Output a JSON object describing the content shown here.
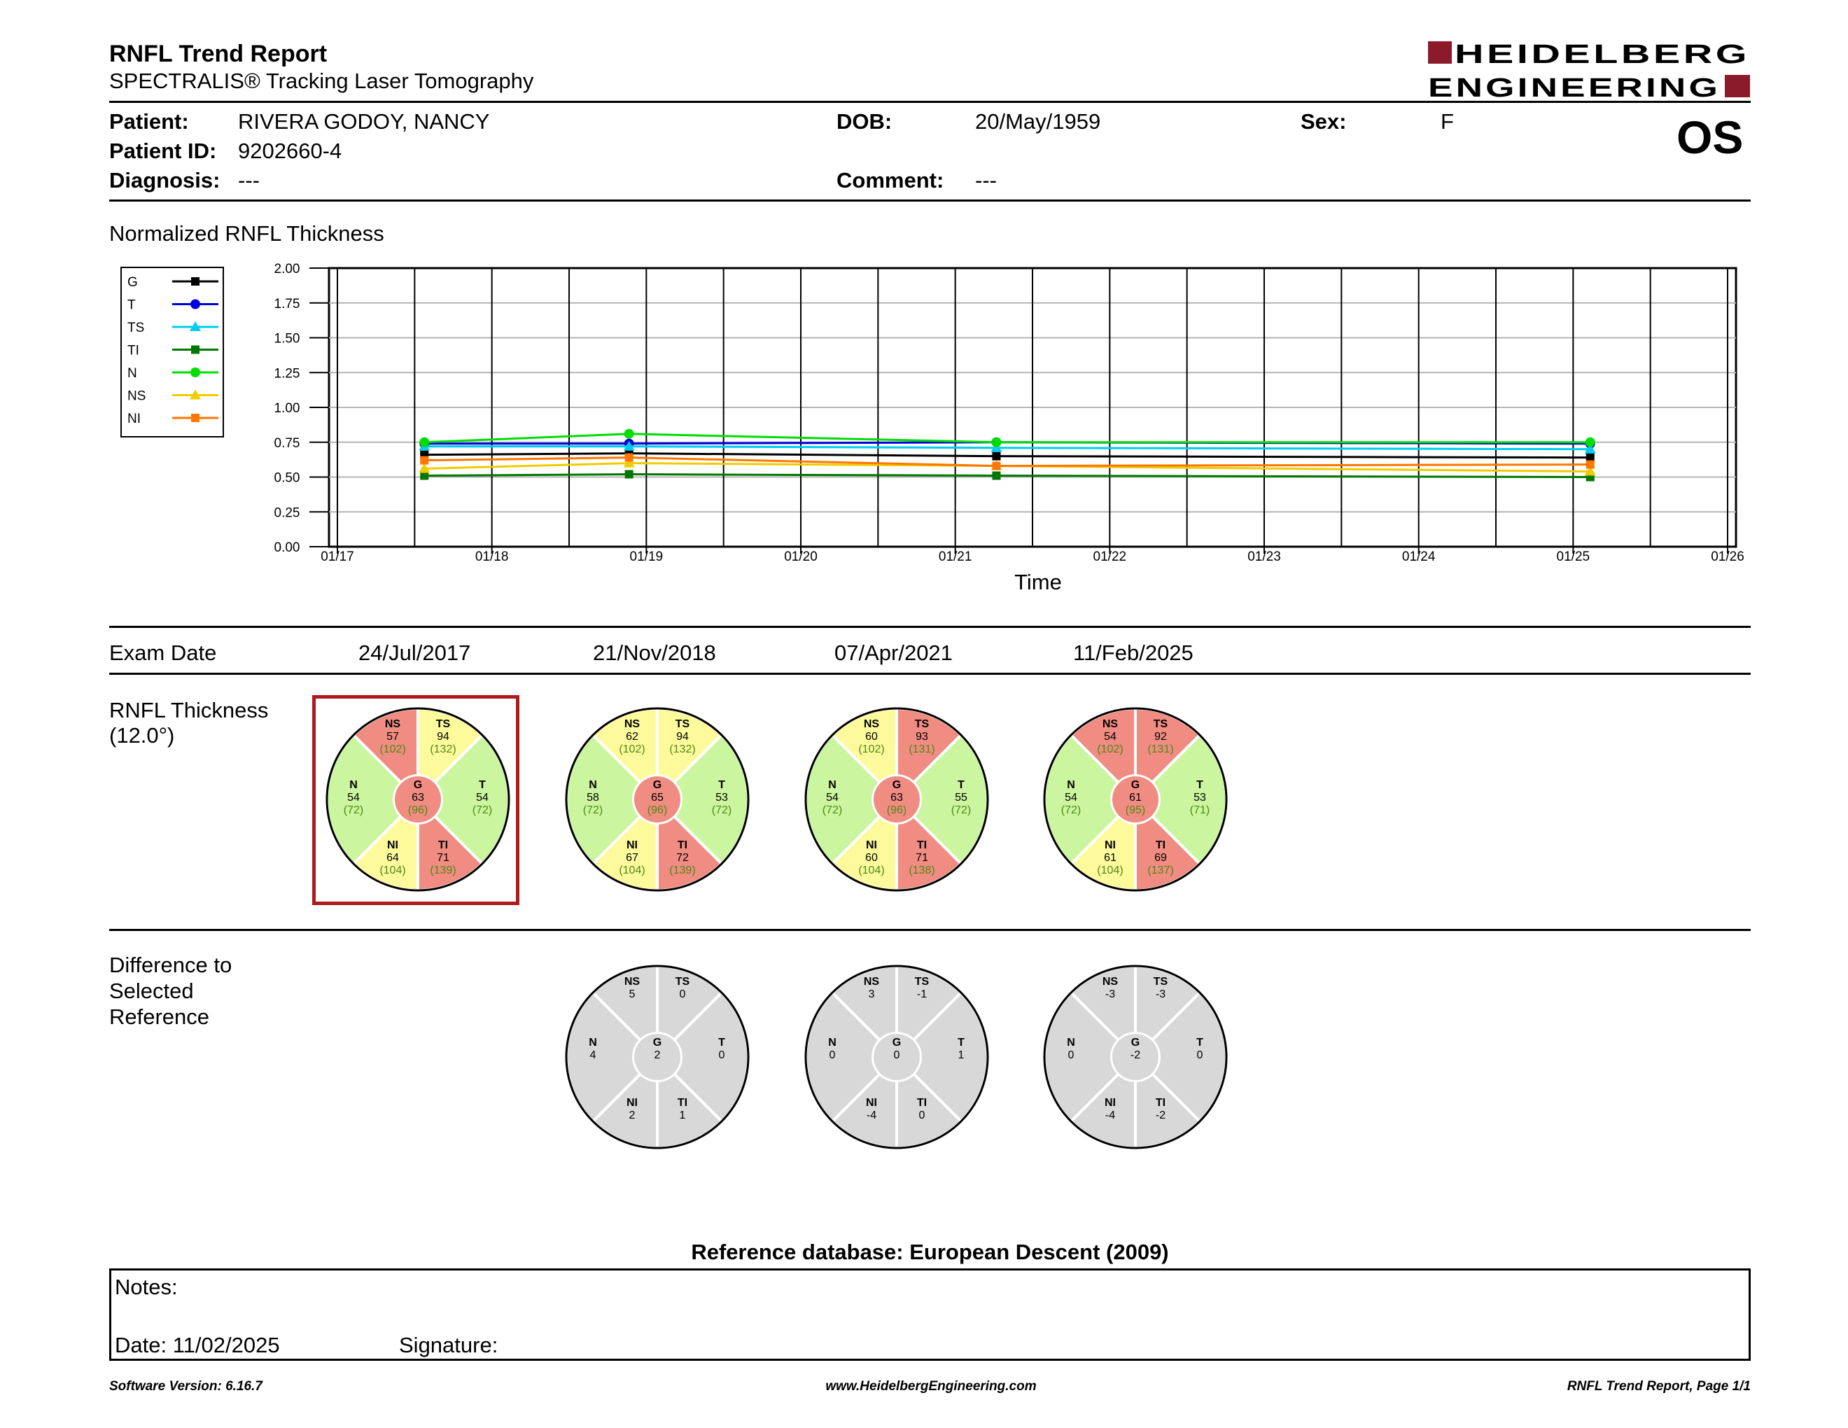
{
  "header": {
    "title": "RNFL Trend Report",
    "subtitle": "SPECTRALIS® Tracking Laser Tomography",
    "logo": {
      "line1": "HEIDELBERG",
      "line2": "ENGINEERING",
      "accent": "#8b1a2b"
    },
    "eye": "OS"
  },
  "patient": {
    "name_label": "Patient:",
    "name": "RIVERA GODOY, NANCY",
    "id_label": "Patient ID:",
    "id": "9202660-4",
    "diagnosis_label": "Diagnosis:",
    "diagnosis": "---",
    "dob_label": "DOB:",
    "dob": "20/May/1959",
    "comment_label": "Comment:",
    "comment": "---",
    "sex_label": "Sex:",
    "sex": "F"
  },
  "chart_data": {
    "type": "line",
    "title": "Normalized RNFL Thickness",
    "xlabel": "Time",
    "ylabel": "",
    "ylim": [
      0,
      2
    ],
    "y_ticks": [
      "0.00",
      "0.25",
      "0.50",
      "0.75",
      "1.00",
      "1.25",
      "1.50",
      "1.75",
      "2.00"
    ],
    "x_tick_labels": [
      "01/17",
      "01/18",
      "01/19",
      "01/20",
      "01/21",
      "01/22",
      "01/23",
      "01/24",
      "01/25",
      "01/26"
    ],
    "x": [
      "2017-07-24",
      "2018-11-21",
      "2021-04-07",
      "2025-02-11"
    ],
    "legend_position": "top-left",
    "grid": true,
    "series": [
      {
        "name": "G",
        "color": "#000000",
        "marker": "square",
        "values": [
          0.66,
          0.67,
          0.65,
          0.64
        ]
      },
      {
        "name": "T",
        "color": "#0000dd",
        "marker": "circle",
        "values": [
          0.74,
          0.74,
          0.75,
          0.74
        ]
      },
      {
        "name": "TS",
        "color": "#00ccee",
        "marker": "triangle",
        "values": [
          0.72,
          0.72,
          0.71,
          0.7
        ]
      },
      {
        "name": "TI",
        "color": "#007700",
        "marker": "square",
        "values": [
          0.51,
          0.52,
          0.51,
          0.5
        ]
      },
      {
        "name": "N",
        "color": "#00dd00",
        "marker": "circle",
        "values": [
          0.75,
          0.81,
          0.75,
          0.75
        ]
      },
      {
        "name": "NS",
        "color": "#eecc00",
        "marker": "triangle",
        "values": [
          0.56,
          0.6,
          0.58,
          0.54
        ]
      },
      {
        "name": "NI",
        "color": "#ff7700",
        "marker": "square",
        "values": [
          0.62,
          0.64,
          0.58,
          0.59
        ]
      }
    ]
  },
  "exam_section": {
    "label": "Exam Date",
    "dates": [
      "24/Jul/2017",
      "21/Nov/2018",
      "07/Apr/2021",
      "11/Feb/2025"
    ]
  },
  "thickness_section": {
    "label_line1": "RNFL Thickness",
    "label_line2": "(12.0°)",
    "colors": {
      "red": "#f08c82",
      "yellow": "#fdfa9c",
      "green": "#cbf59e",
      "normtext": "#4c8a12"
    },
    "exams": [
      {
        "selected": true,
        "G": {
          "v": "63",
          "n": "(96)",
          "c": "red"
        },
        "T": {
          "v": "54",
          "n": "(72)",
          "c": "green"
        },
        "TS": {
          "v": "94",
          "n": "(132)",
          "c": "yellow"
        },
        "TI": {
          "v": "71",
          "n": "(139)",
          "c": "red"
        },
        "N": {
          "v": "54",
          "n": "(72)",
          "c": "green"
        },
        "NS": {
          "v": "57",
          "n": "(102)",
          "c": "red"
        },
        "NI": {
          "v": "64",
          "n": "(104)",
          "c": "yellow"
        }
      },
      {
        "selected": false,
        "G": {
          "v": "65",
          "n": "(96)",
          "c": "red"
        },
        "T": {
          "v": "53",
          "n": "(72)",
          "c": "green"
        },
        "TS": {
          "v": "94",
          "n": "(132)",
          "c": "yellow"
        },
        "TI": {
          "v": "72",
          "n": "(139)",
          "c": "red"
        },
        "N": {
          "v": "58",
          "n": "(72)",
          "c": "green"
        },
        "NS": {
          "v": "62",
          "n": "(102)",
          "c": "yellow"
        },
        "NI": {
          "v": "67",
          "n": "(104)",
          "c": "yellow"
        }
      },
      {
        "selected": false,
        "G": {
          "v": "63",
          "n": "(96)",
          "c": "red"
        },
        "T": {
          "v": "55",
          "n": "(72)",
          "c": "green"
        },
        "TS": {
          "v": "93",
          "n": "(131)",
          "c": "red"
        },
        "TI": {
          "v": "71",
          "n": "(138)",
          "c": "red"
        },
        "N": {
          "v": "54",
          "n": "(72)",
          "c": "green"
        },
        "NS": {
          "v": "60",
          "n": "(102)",
          "c": "yellow"
        },
        "NI": {
          "v": "60",
          "n": "(104)",
          "c": "yellow"
        }
      },
      {
        "selected": false,
        "G": {
          "v": "61",
          "n": "(95)",
          "c": "red"
        },
        "T": {
          "v": "53",
          "n": "(71)",
          "c": "green"
        },
        "TS": {
          "v": "92",
          "n": "(131)",
          "c": "red"
        },
        "TI": {
          "v": "69",
          "n": "(137)",
          "c": "red"
        },
        "N": {
          "v": "54",
          "n": "(72)",
          "c": "green"
        },
        "NS": {
          "v": "54",
          "n": "(102)",
          "c": "red"
        },
        "NI": {
          "v": "61",
          "n": "(104)",
          "c": "yellow"
        }
      }
    ]
  },
  "difference_section": {
    "label_line1": "Difference to",
    "label_line2": "Selected",
    "label_line3": "Reference",
    "color": "#d8d8d8",
    "exams": [
      null,
      {
        "G": "2",
        "T": "0",
        "TS": "0",
        "TI": "1",
        "N": "4",
        "NS": "5",
        "NI": "2"
      },
      {
        "G": "0",
        "T": "1",
        "TS": "-1",
        "TI": "0",
        "N": "0",
        "NS": "3",
        "NI": "-4"
      },
      {
        "G": "-2",
        "T": "0",
        "TS": "-3",
        "TI": "-2",
        "N": "0",
        "NS": "-3",
        "NI": "-4"
      }
    ]
  },
  "reference_db": "Reference database: European Descent (2009)",
  "notes": {
    "label": "Notes:",
    "date": "Date: 11/02/2025",
    "signature": "Signature:"
  },
  "footer": {
    "left": "Software Version: 6.16.7",
    "center": "www.HeidelbergEngineering.com",
    "right": "RNFL Trend Report, Page 1/1"
  }
}
